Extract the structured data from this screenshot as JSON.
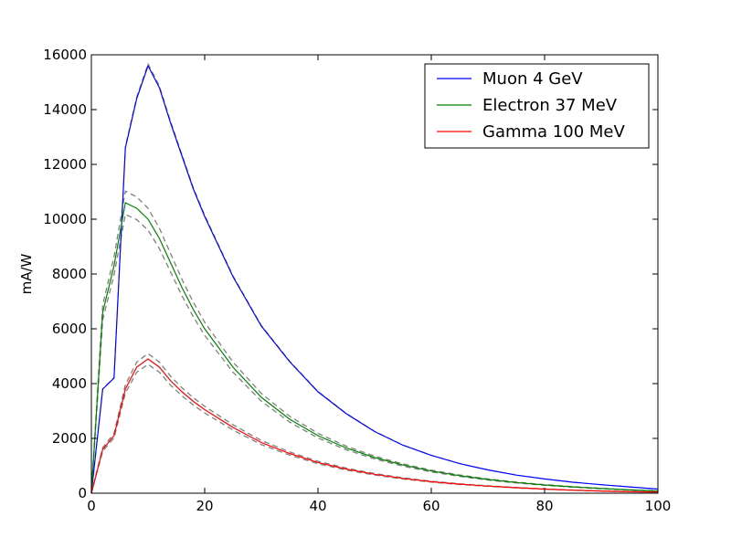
{
  "chart_data": {
    "type": "line",
    "title": "",
    "xlabel": "",
    "ylabel": "mA/W",
    "xlim": [
      0,
      100
    ],
    "ylim": [
      0,
      16000
    ],
    "xticks": [
      "0",
      "20",
      "40",
      "60",
      "80",
      "100"
    ],
    "yticks": [
      "0",
      "2000",
      "4000",
      "6000",
      "8000",
      "10000",
      "12000",
      "14000",
      "16000"
    ],
    "grid": false,
    "legend": "top-right",
    "x": [
      0,
      2,
      4,
      6,
      8,
      10,
      12,
      14,
      16,
      18,
      20,
      25,
      30,
      35,
      40,
      45,
      50,
      55,
      60,
      65,
      70,
      75,
      80,
      85,
      90,
      95,
      100
    ],
    "series": [
      {
        "name": "Muon 4 GeV",
        "color": "#0000ff",
        "values": [
          0,
          3800,
          4200,
          12600,
          14400,
          15600,
          14800,
          13500,
          12300,
          11100,
          10100,
          7900,
          6100,
          4800,
          3700,
          2900,
          2250,
          1750,
          1380,
          1080,
          850,
          660,
          520,
          400,
          310,
          230,
          150
        ]
      },
      {
        "name": "Electron 37 MeV",
        "color": "#008000",
        "values": [
          0,
          6600,
          8300,
          10600,
          10400,
          10000,
          9300,
          8400,
          7500,
          6700,
          6000,
          4600,
          3500,
          2700,
          2100,
          1650,
          1300,
          1030,
          810,
          640,
          500,
          390,
          300,
          230,
          170,
          120,
          80
        ]
      },
      {
        "name": "Gamma 100 MeV",
        "color": "#ff0000",
        "values": [
          0,
          1600,
          2100,
          3800,
          4600,
          4900,
          4600,
          4100,
          3700,
          3350,
          3050,
          2400,
          1850,
          1450,
          1120,
          880,
          690,
          540,
          420,
          330,
          260,
          200,
          150,
          110,
          80,
          55,
          40
        ]
      }
    ],
    "uncertainty_band": {
      "color": "#808080",
      "style": "dashed",
      "relative": 0.04
    }
  }
}
